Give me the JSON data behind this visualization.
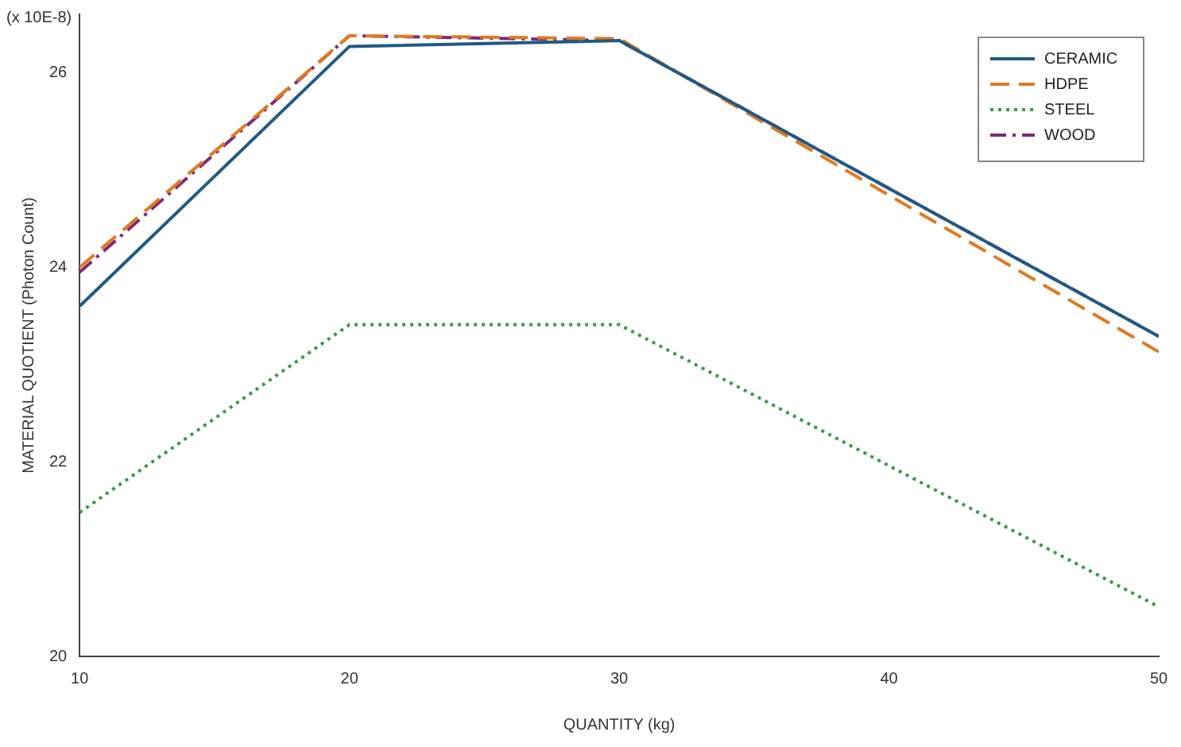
{
  "chart_data": {
    "type": "line",
    "xlabel": "QUANTITY (kg)",
    "ylabel": "MATERIAL QUOTIENT (Photon Count)",
    "annotations": [
      "(x 10E-8)"
    ],
    "x": [
      10,
      20,
      30,
      50
    ],
    "xlim": [
      10,
      50
    ],
    "xticks": [
      10,
      20,
      30,
      40,
      50
    ],
    "ylim": [
      20,
      26.6
    ],
    "yticks": [
      20,
      22,
      24,
      26
    ],
    "grid": false,
    "legend": "top right",
    "marker": "none",
    "series": [
      {
        "name": "CERAMIC",
        "color": "#1f5a85",
        "line_style": "solid",
        "values": [
          23.6,
          26.27,
          26.33,
          23.29
        ]
      },
      {
        "name": "HDPE",
        "color": "#e07a1f",
        "line_style": "dashed",
        "values": [
          24.0,
          26.38,
          26.35,
          23.13
        ]
      },
      {
        "name": "STEEL",
        "color": "#3a9a4a",
        "line_style": "dotted",
        "values": [
          21.48,
          23.41,
          23.41,
          20.51
        ]
      },
      {
        "name": "WOOD",
        "color": "#7a2a7a",
        "line_style": "dashdot",
        "values": [
          23.95,
          26.38,
          26.33,
          23.29
        ]
      }
    ]
  }
}
